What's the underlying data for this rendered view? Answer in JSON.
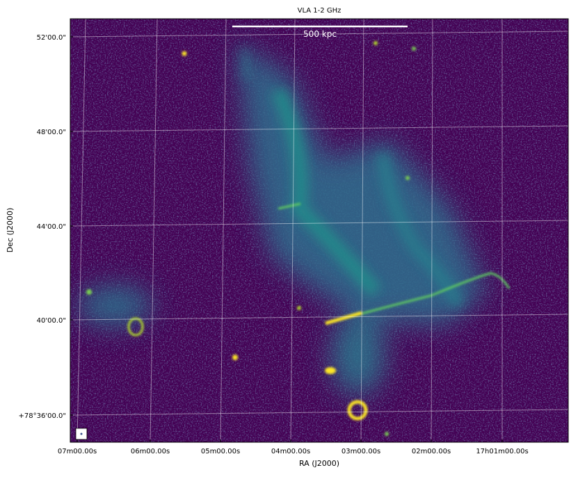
{
  "title": "VLA 1-2 GHz",
  "scale_bar": {
    "label": "500 kpc"
  },
  "x_axis": {
    "label": "RA (J2000)",
    "ticks": [
      "07m00.00s",
      "06m00.00s",
      "05m00.00s",
      "04m00.00s",
      "03m00.00s",
      "02m00.00s",
      "17h01m00.00s"
    ]
  },
  "y_axis": {
    "label": "Dec (J2000)",
    "ticks": [
      "52'00.0\"",
      "48'00.0\"",
      "44'00.0\"",
      "40'00.0\"",
      "+78°36'00.0\""
    ]
  }
}
